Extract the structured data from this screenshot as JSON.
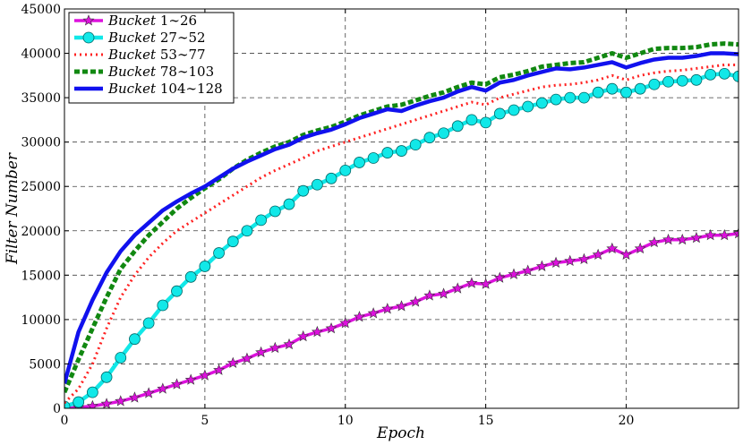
{
  "chart_data": {
    "type": "line",
    "xlabel": "Epoch",
    "ylabel": "Filter Number",
    "xlim": [
      0,
      24
    ],
    "ylim": [
      0,
      45000
    ],
    "xticks": [
      0,
      5,
      10,
      15,
      20
    ],
    "yticks": [
      0,
      5000,
      10000,
      15000,
      20000,
      25000,
      30000,
      35000,
      40000,
      45000
    ],
    "grid": true,
    "legend_position": "top-left",
    "x": [
      0,
      0.5,
      1,
      1.5,
      2,
      2.5,
      3,
      3.5,
      4,
      4.5,
      5,
      5.5,
      6,
      6.5,
      7,
      7.5,
      8,
      8.5,
      9,
      9.5,
      10,
      10.5,
      11,
      11.5,
      12,
      12.5,
      13,
      13.5,
      14,
      14.5,
      15,
      15.5,
      16,
      16.5,
      17,
      17.5,
      18,
      18.5,
      19,
      19.5,
      20,
      20.5,
      21,
      21.5,
      22,
      22.5,
      23,
      23.5,
      24
    ],
    "series": [
      {
        "name": "Bucket 1∼26",
        "legend_text": "1∼26",
        "color": "#dd11dd",
        "style": "line-star",
        "values": [
          0,
          100,
          250,
          500,
          800,
          1200,
          1700,
          2200,
          2700,
          3200,
          3700,
          4300,
          5100,
          5600,
          6300,
          6800,
          7200,
          8100,
          8600,
          9000,
          9600,
          10300,
          10700,
          11200,
          11500,
          12000,
          12700,
          12900,
          13500,
          14100,
          14000,
          14700,
          15100,
          15500,
          16000,
          16400,
          16600,
          16800,
          17300,
          18000,
          17300,
          18000,
          18700,
          19000,
          19000,
          19200,
          19500,
          19500,
          19700
        ]
      },
      {
        "name": "Bucket 27∼52",
        "legend_text": "27∼52",
        "color": "#11e8e8",
        "style": "line-circle",
        "values": [
          200,
          700,
          1800,
          3500,
          5700,
          7800,
          9600,
          11600,
          13200,
          14800,
          16000,
          17500,
          18800,
          20000,
          21200,
          22200,
          23000,
          24500,
          25200,
          25900,
          26800,
          27700,
          28200,
          28800,
          29000,
          29700,
          30500,
          31000,
          31800,
          32500,
          32200,
          33200,
          33600,
          34000,
          34400,
          34800,
          35000,
          35000,
          35600,
          36000,
          35600,
          36000,
          36500,
          36800,
          36900,
          37000,
          37600,
          37700,
          37400
        ]
      },
      {
        "name": "Bucket 53∼77",
        "legend_text": "53∼77",
        "color": "#ff2222",
        "style": "dotted",
        "values": [
          600,
          2200,
          5000,
          9000,
          12500,
          15000,
          17000,
          18600,
          20000,
          21000,
          22000,
          23000,
          24000,
          25000,
          26000,
          26800,
          27500,
          28200,
          29000,
          29500,
          30000,
          30500,
          31000,
          31500,
          32000,
          32500,
          33000,
          33500,
          34000,
          34500,
          34200,
          35000,
          35400,
          35800,
          36200,
          36400,
          36500,
          36700,
          37000,
          37500,
          37000,
          37500,
          37800,
          38000,
          38100,
          38300,
          38500,
          38700,
          38700
        ]
      },
      {
        "name": "Bucket 78∼103",
        "legend_text": "78∼103",
        "color": "#118811",
        "style": "dashed",
        "values": [
          1800,
          5500,
          9000,
          12500,
          15700,
          17700,
          19500,
          21000,
          22500,
          23700,
          24800,
          25800,
          27000,
          28000,
          28800,
          29500,
          30000,
          30800,
          31300,
          31700,
          32300,
          33000,
          33500,
          34000,
          34200,
          34700,
          35200,
          35600,
          36200,
          36700,
          36500,
          37300,
          37600,
          38000,
          38500,
          38700,
          38900,
          39000,
          39500,
          40000,
          39500,
          40000,
          40500,
          40600,
          40600,
          40700,
          41000,
          41100,
          41000
        ]
      },
      {
        "name": "Bucket 104∼128",
        "legend_text": "104∼128",
        "color": "#1111ee",
        "style": "solid",
        "values": [
          2800,
          8600,
          12200,
          15300,
          17700,
          19500,
          20900,
          22300,
          23300,
          24200,
          25000,
          26000,
          27000,
          27800,
          28500,
          29200,
          29700,
          30500,
          31000,
          31400,
          32000,
          32700,
          33200,
          33700,
          33500,
          34100,
          34600,
          35000,
          35700,
          36200,
          35800,
          36700,
          37000,
          37500,
          37900,
          38300,
          38200,
          38400,
          38700,
          39000,
          38400,
          38900,
          39300,
          39500,
          39500,
          39700,
          40000,
          40000,
          39900
        ]
      }
    ]
  }
}
